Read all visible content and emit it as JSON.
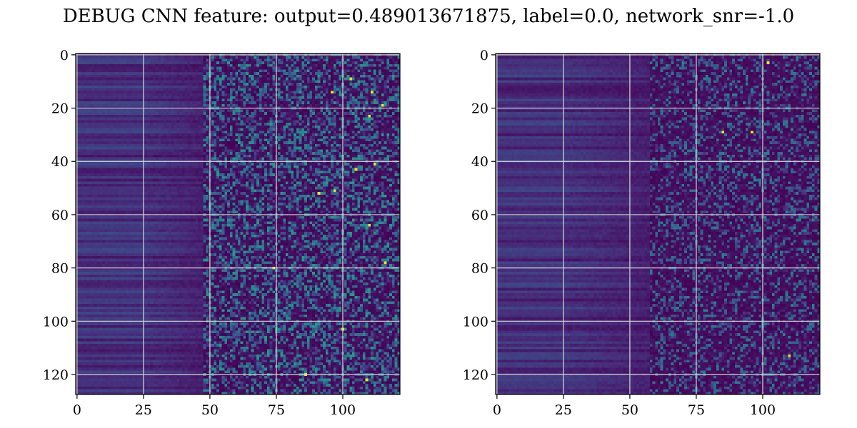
{
  "figure": {
    "title": "DEBUG CNN feature: output=0.489013671875, label=0.0, network_snr=-1.0"
  },
  "chart_data": [
    {
      "type": "heatmap",
      "title": "",
      "xlabel": "",
      "ylabel": "",
      "n_cols": 122,
      "n_rows": 128,
      "xlim": [
        -0.5,
        121.5
      ],
      "ylim": [
        127.5,
        -0.5
      ],
      "xticks": [
        0,
        25,
        50,
        75,
        100
      ],
      "yticks": [
        0,
        20,
        40,
        60,
        80,
        100,
        120
      ],
      "grid": true,
      "colormap": "viridis",
      "description": "Low, smooth striped values for columns 0-45; noisy, high-variance values for columns ~50-121 with occasional bright (yellow) pixels",
      "bright_pixels": [
        [
          103,
          9
        ],
        [
          96,
          14
        ],
        [
          111,
          14
        ],
        [
          115,
          19
        ],
        [
          110,
          23
        ],
        [
          112,
          41
        ],
        [
          105,
          43
        ],
        [
          97,
          51
        ],
        [
          91,
          52
        ],
        [
          110,
          64
        ],
        [
          116,
          78
        ],
        [
          74,
          80
        ],
        [
          100,
          103
        ],
        [
          86,
          120
        ],
        [
          109,
          122
        ]
      ]
    },
    {
      "type": "heatmap",
      "title": "",
      "xlabel": "",
      "ylabel": "",
      "n_cols": 122,
      "n_rows": 128,
      "xlim": [
        -0.5,
        121.5
      ],
      "ylim": [
        127.5,
        -0.5
      ],
      "xticks": [
        0,
        25,
        50,
        75,
        100
      ],
      "yticks": [
        0,
        20,
        40,
        60,
        80,
        100,
        120
      ],
      "grid": true,
      "colormap": "viridis",
      "description": "Low, smooth striped values for columns 0-45; sparser noisy values for columns ~55-121 with few bright pixels",
      "bright_pixels": [
        [
          102,
          3
        ],
        [
          85,
          29
        ],
        [
          96,
          29
        ],
        [
          110,
          113
        ]
      ]
    }
  ],
  "colors": {
    "background": "#ffffff",
    "grid": "#d8d8d8",
    "axis": "#000000",
    "viridis_low": "#440154",
    "viridis_mid": "#21918c",
    "viridis_high": "#fde725"
  }
}
